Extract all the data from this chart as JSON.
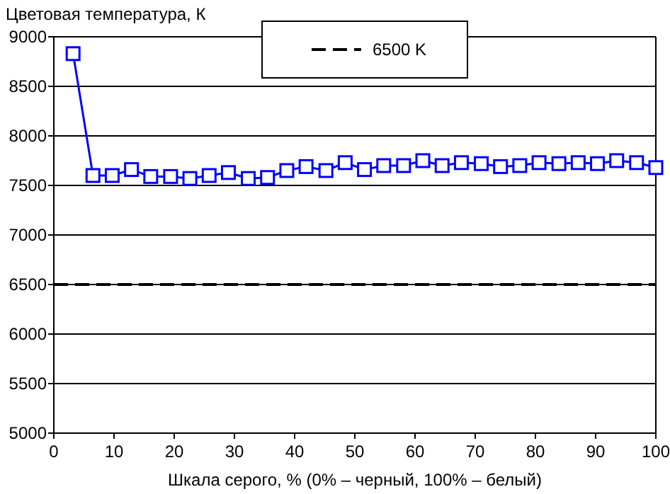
{
  "chart_data": {
    "type": "line",
    "ylabel": "Цветовая температура, К",
    "xlabel": "Шкала серого, % (0% – черный, 100% – белый)",
    "xlim": [
      0,
      100
    ],
    "xticks": [
      0,
      10,
      20,
      30,
      40,
      50,
      60,
      70,
      80,
      90,
      100
    ],
    "ylim": [
      5000,
      9000
    ],
    "yticks": [
      5000,
      5500,
      6000,
      6500,
      7000,
      7500,
      8000,
      8500,
      9000
    ],
    "grid": "y",
    "legend": "top",
    "marker": "square",
    "line_style": "solid",
    "series": [
      {
        "color": "#0000ff",
        "x": [
          3.2,
          6.5,
          9.7,
          12.9,
          16.1,
          19.4,
          22.6,
          25.8,
          29,
          32.3,
          35.5,
          38.7,
          41.9,
          45.2,
          48.4,
          51.6,
          54.8,
          58.1,
          61.3,
          64.5,
          67.7,
          71,
          74.2,
          77.4,
          80.6,
          83.9,
          87.1,
          90.3,
          93.5,
          96.8,
          100
        ],
        "values": [
          8830,
          7600,
          7600,
          7660,
          7590,
          7590,
          7570,
          7600,
          7630,
          7570,
          7580,
          7650,
          7690,
          7650,
          7730,
          7660,
          7700,
          7700,
          7750,
          7700,
          7730,
          7720,
          7690,
          7700,
          7730,
          7720,
          7730,
          7720,
          7750,
          7730,
          7680
        ]
      }
    ],
    "ref_lines": [
      {
        "axis": "y",
        "value": 6500,
        "label": "6500 K",
        "color": "#000000",
        "line_style": "dashed"
      }
    ]
  }
}
